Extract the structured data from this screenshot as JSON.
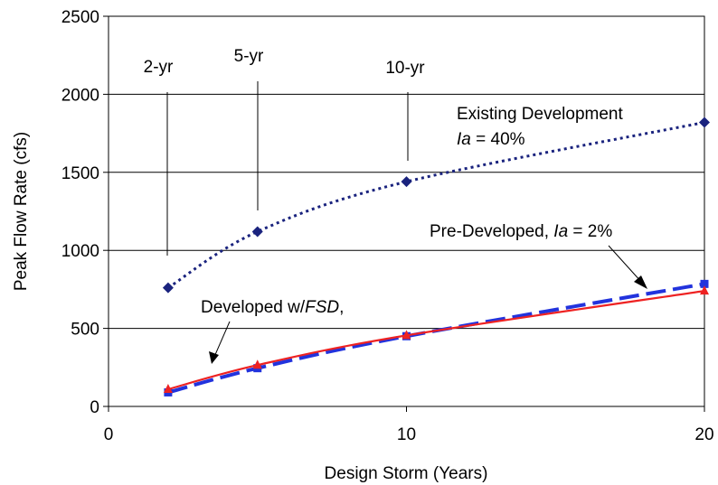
{
  "chart_data": {
    "type": "line",
    "title": "",
    "xlabel": "Design Storm (Years)",
    "ylabel": "Peak Flow Rate (cfs)",
    "xlim": [
      0,
      20
    ],
    "ylim": [
      0,
      2500
    ],
    "x_ticks": [
      0,
      10,
      20
    ],
    "x_tick_labels": [
      "0",
      "10",
      "20"
    ],
    "y_ticks": [
      0,
      500,
      1000,
      1500,
      2000,
      2500
    ],
    "y_tick_labels": [
      "0",
      "500",
      "1000",
      "1500",
      "2000",
      "2500"
    ],
    "grid": "horizontal",
    "series": [
      {
        "key": "existing",
        "x": [
          2,
          5,
          10,
          20
        ],
        "values": [
          760,
          1120,
          1440,
          1820
        ],
        "color": "#1a237e",
        "line": "dotted",
        "marker": "diamond"
      },
      {
        "key": "predeveloped",
        "x": [
          2,
          5,
          10,
          20
        ],
        "values": [
          90,
          245,
          450,
          785
        ],
        "color": "#2233dd",
        "line": "dashed",
        "marker": "square"
      },
      {
        "key": "fsd",
        "x": [
          2,
          5,
          10,
          20
        ],
        "values": [
          110,
          265,
          455,
          740
        ],
        "color": "#ee2222",
        "line": "solid",
        "marker": "triangle"
      }
    ],
    "annotations": {
      "yr2": "2-yr",
      "yr5": "5-yr",
      "yr10": "10-yr",
      "existing_line1": "Existing Development",
      "existing_ia": "Ia",
      "existing_rest": " = 40%",
      "pre_text": "Pre-Developed, ",
      "pre_ia": "Ia",
      "pre_rest": " = 2%",
      "dev_text": "Developed w/",
      "dev_fsd": "FSD",
      "dev_rest": ","
    }
  }
}
